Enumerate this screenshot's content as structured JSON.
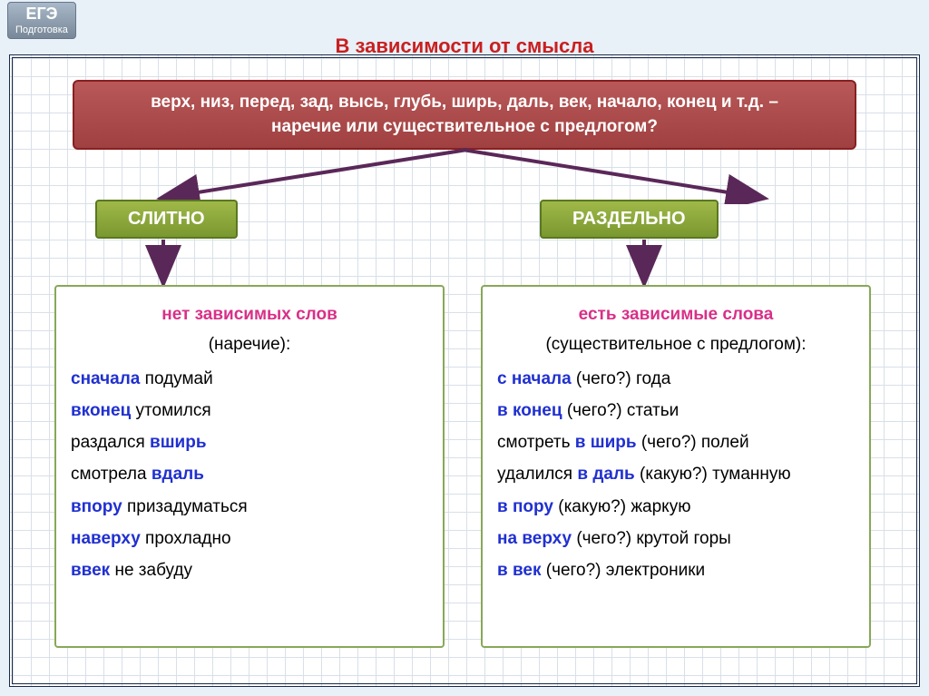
{
  "logo": {
    "main": "ЕГЭ",
    "sub": "Подготовка"
  },
  "title": "В  зависимости от смысла",
  "topBox": {
    "line1": "верх, низ, перед, зад, высь, глубь, ширь, даль, век, начало, конец и т.д. –",
    "line2": "наречие или существительное с предлогом?"
  },
  "colors": {
    "title": "#c82020",
    "topBoxBg": "#a84848",
    "catBoxBg": "#8faa38",
    "blue": "#2030d0",
    "pink": "#d83088",
    "arrow": "#5a2858"
  },
  "categories": {
    "left": {
      "label": "СЛИТНО"
    },
    "right": {
      "label": "РАЗДЕЛЬНО"
    }
  },
  "left": {
    "subtitle1": "нет зависимых слов",
    "subtitle2": "(наречие):",
    "items": [
      {
        "bold": "сначала",
        "rest": " подумай",
        "boldFirst": true
      },
      {
        "bold": "вконец",
        "rest": " утомился",
        "boldFirst": true
      },
      {
        "pre": "раздался ",
        "bold": "вширь",
        "boldFirst": false
      },
      {
        "pre": "смотрела ",
        "bold": "вдаль",
        "boldFirst": false
      },
      {
        "bold": "впору",
        "rest": " призадуматься",
        "boldFirst": true
      },
      {
        "bold": "наверху",
        "rest": " прохладно",
        "boldFirst": true
      },
      {
        "bold": "ввек",
        "rest": " не забуду",
        "boldFirst": true
      }
    ]
  },
  "right": {
    "subtitle1": "есть зависимые слова",
    "subtitle2": "(существительное с предлогом):",
    "items": [
      {
        "bold": "с начала",
        "rest": " (чего?) года"
      },
      {
        "bold": "в конец",
        "rest": " (чего?) статьи"
      },
      {
        "pre": "смотреть ",
        "bold": "в ширь",
        "rest": " (чего?) полей"
      },
      {
        "pre": "удалился ",
        "bold": "в даль",
        "rest": " (какую?) туманную"
      },
      {
        "pre": " ",
        "bold": "в пору",
        "rest": " (какую?) жаркую"
      },
      {
        "bold": "на верху",
        "rest": " (чего?) крутой горы"
      },
      {
        "bold": "в век",
        "rest": " (чего?) электроники"
      }
    ]
  }
}
